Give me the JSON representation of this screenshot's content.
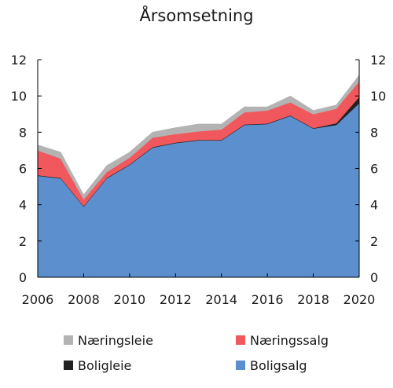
{
  "chart_data": {
    "type": "area",
    "stacked": true,
    "title": "Årsomsetning",
    "xlabel": "",
    "ylabel": "",
    "x": [
      2006,
      2007,
      2008,
      2009,
      2010,
      2011,
      2012,
      2013,
      2014,
      2015,
      2016,
      2017,
      2018,
      2019,
      2020
    ],
    "xticks": [
      "2006",
      "2008",
      "2010",
      "2012",
      "2014",
      "2016",
      "2018",
      "2020"
    ],
    "yticks": [
      "0",
      "2",
      "4",
      "6",
      "8",
      "10",
      "12"
    ],
    "ylim": [
      0,
      12
    ],
    "grid": false,
    "secondary_y_axis_mirrored": true,
    "legend_position": "bottom",
    "series": [
      {
        "name": "Boligsalg",
        "color": "#5b8fcd",
        "values": [
          5.6,
          5.45,
          3.9,
          5.45,
          6.2,
          7.15,
          7.4,
          7.55,
          7.55,
          8.4,
          8.45,
          8.9,
          8.2,
          8.4,
          9.6
        ]
      },
      {
        "name": "Boligleie",
        "color": "#222222",
        "values": [
          0.03,
          0.03,
          0.03,
          0.03,
          0.03,
          0.03,
          0.03,
          0.03,
          0.03,
          0.03,
          0.03,
          0.03,
          0.03,
          0.1,
          0.35
        ]
      },
      {
        "name": "Næringssalg",
        "color": "#f0585e",
        "values": [
          1.37,
          1.07,
          0.37,
          0.32,
          0.37,
          0.52,
          0.47,
          0.47,
          0.57,
          0.67,
          0.72,
          0.72,
          0.77,
          0.8,
          0.85
        ]
      },
      {
        "name": "Næringsleie",
        "color": "#b3b3b3",
        "values": [
          0.3,
          0.35,
          0.25,
          0.35,
          0.3,
          0.3,
          0.35,
          0.4,
          0.3,
          0.3,
          0.2,
          0.35,
          0.2,
          0.2,
          0.35
        ]
      }
    ],
    "legend_order": [
      "Næringsleie",
      "Næringssalg",
      "Boligleie",
      "Boligsalg"
    ]
  }
}
